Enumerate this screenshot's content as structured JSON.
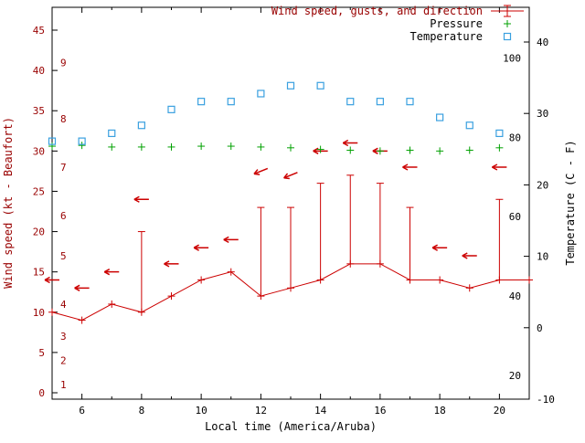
{
  "colors": {
    "wind": "#cc0000",
    "wind_label_text": "#990000",
    "pressure": "#00a000",
    "temperature": "#3aa0e0",
    "axis_text": "#000000",
    "background": "#ffffff",
    "plot_border": "#000000"
  },
  "chart_data": {
    "type": "line",
    "axes": {
      "x": {
        "label": "Local time (America/Aruba)",
        "min": 5,
        "max": 21,
        "major_ticks": [
          6,
          8,
          10,
          12,
          14,
          16,
          18,
          20
        ],
        "minor_step": 1
      },
      "wind": {
        "label": "Wind speed (kt - Beaufort)",
        "min": 0,
        "max": 45,
        "ticks": [
          0,
          5,
          10,
          15,
          20,
          25,
          30,
          35,
          40,
          45
        ]
      },
      "beaufort_inner_scale": {
        "numbers": [
          1,
          2,
          3,
          4,
          5,
          6,
          7,
          8,
          9
        ],
        "kt_positions": [
          1,
          4,
          7,
          11,
          17,
          22,
          28,
          34,
          41
        ]
      },
      "temp": {
        "label": "Temperature (C - F)",
        "ticks_c": [
          -10,
          0,
          10,
          20,
          30,
          40
        ],
        "inner_ticks_f": [
          20,
          40,
          60,
          80,
          100
        ]
      }
    },
    "x_hours": [
      5,
      6,
      7,
      8,
      9,
      10,
      11,
      12,
      13,
      14,
      15,
      16,
      17,
      18,
      19,
      20,
      21
    ],
    "series": {
      "wind": {
        "label": "Wind speed, gusts, and direction",
        "marker": "plus-with-error-bars",
        "speed_kt": [
          10,
          9,
          11,
          10,
          12,
          14,
          15,
          12,
          13,
          14,
          16,
          16,
          14,
          14,
          13,
          14,
          14
        ],
        "gust_kt": [
          10,
          9,
          11,
          20,
          12,
          14,
          15,
          23,
          23,
          26,
          27,
          26,
          23,
          14,
          13,
          24,
          14
        ],
        "direction_arrows": [
          {
            "hour": 5,
            "kt": 14,
            "from_deg": 90
          },
          {
            "hour": 6,
            "kt": 13,
            "from_deg": 90
          },
          {
            "hour": 7,
            "kt": 15,
            "from_deg": 90
          },
          {
            "hour": 8,
            "kt": 24,
            "from_deg": 90
          },
          {
            "hour": 9,
            "kt": 16,
            "from_deg": 90
          },
          {
            "hour": 10,
            "kt": 18,
            "from_deg": 90
          },
          {
            "hour": 11,
            "kt": 19,
            "from_deg": 90
          },
          {
            "hour": 12,
            "kt": 27.5,
            "from_deg": 68
          },
          {
            "hour": 13,
            "kt": 27,
            "from_deg": 68
          },
          {
            "hour": 14,
            "kt": 30,
            "from_deg": 90
          },
          {
            "hour": 15,
            "kt": 31,
            "from_deg": 90
          },
          {
            "hour": 16,
            "kt": 30,
            "from_deg": 90
          },
          {
            "hour": 17,
            "kt": 28,
            "from_deg": 90
          },
          {
            "hour": 18,
            "kt": 18,
            "from_deg": 90
          },
          {
            "hour": 19,
            "kt": 17,
            "from_deg": 90
          },
          {
            "hour": 20,
            "kt": 28,
            "from_deg": 90
          }
        ]
      },
      "pressure": {
        "label": "Pressure",
        "marker": "plus",
        "x_hours": [
          5,
          6,
          7,
          8,
          9,
          10,
          11,
          12,
          13,
          14,
          15,
          16,
          17,
          18,
          19,
          20
        ],
        "values": [
          30.6,
          30.7,
          30.5,
          30.5,
          30.5,
          30.6,
          30.6,
          30.5,
          30.4,
          30.2,
          30.1,
          30.0,
          30.1,
          30.0,
          30.1,
          30.4
        ]
      },
      "temperature": {
        "label": "Temperature",
        "marker": "open-square",
        "x_hours": [
          5,
          6,
          7,
          8,
          9,
          10,
          11,
          12,
          13,
          14,
          15,
          16,
          17,
          18,
          19,
          20
        ],
        "values_f": [
          79,
          79,
          81,
          83,
          87,
          89,
          89,
          91,
          93,
          93,
          89,
          89,
          89,
          85,
          83,
          81
        ]
      }
    },
    "legend_position": "top-right-inside"
  }
}
